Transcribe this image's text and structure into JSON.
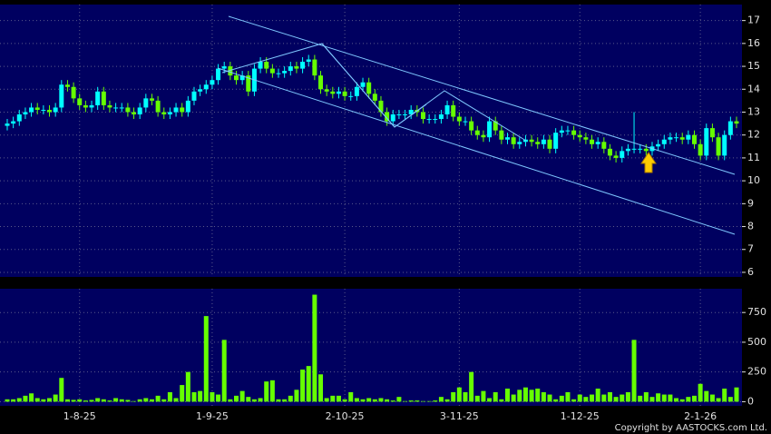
{
  "chart_data": [
    {
      "type": "candlestick",
      "up_color": "#00ffff",
      "down_color": "#66ff00",
      "ylim": [
        5.8,
        17.7
      ],
      "yticks": [
        6,
        7,
        8,
        9,
        10,
        11,
        12,
        13,
        14,
        15,
        16,
        17
      ],
      "grid": true,
      "open": [
        12.4,
        12.5,
        12.6,
        12.9,
        13.0,
        13.2,
        13.1,
        13.1,
        13.0,
        13.2,
        14.2,
        14.1,
        13.6,
        13.3,
        13.2,
        13.3,
        13.9,
        13.3,
        13.2,
        13.2,
        13.2,
        13.0,
        12.9,
        13.2,
        13.6,
        13.5,
        13.0,
        12.9,
        13.0,
        13.2,
        13.0,
        13.5,
        13.9,
        14.0,
        14.2,
        14.4,
        14.9,
        15.0,
        14.6,
        14.4,
        14.6,
        13.9,
        14.9,
        15.2,
        14.9,
        14.7,
        14.7,
        14.8,
        15.0,
        14.9,
        15.2,
        15.3,
        14.6,
        14.0,
        13.9,
        13.8,
        13.9,
        13.7,
        13.7,
        14.1,
        14.3,
        13.8,
        13.5,
        13.0,
        12.6,
        12.9,
        12.9,
        12.9,
        13.1,
        13.0,
        12.7,
        12.7,
        12.7,
        12.9,
        13.3,
        12.8,
        12.6,
        12.6,
        12.2,
        12.0,
        11.9,
        12.6,
        12.2,
        11.8,
        11.9,
        11.6,
        11.7,
        11.8,
        11.7,
        11.6,
        11.8,
        11.4,
        12.1,
        12.2,
        12.2,
        12.0,
        11.9,
        11.8,
        11.6,
        11.7,
        11.4,
        11.1,
        11.0,
        11.3,
        11.4,
        11.4,
        11.4,
        11.3,
        11.5,
        11.6,
        11.8,
        11.9,
        11.9,
        11.8,
        12.0,
        11.6,
        11.1,
        12.3,
        11.9,
        11.1,
        12.0,
        12.6
      ],
      "high": [
        12.7,
        12.8,
        13.1,
        13.2,
        13.4,
        13.4,
        13.3,
        13.3,
        13.4,
        14.4,
        14.4,
        14.3,
        13.8,
        13.5,
        13.5,
        14.1,
        14.1,
        13.5,
        13.4,
        13.4,
        13.4,
        13.2,
        13.4,
        13.8,
        13.8,
        13.7,
        13.2,
        13.2,
        13.4,
        13.4,
        13.7,
        14.1,
        14.2,
        14.4,
        14.6,
        15.1,
        15.2,
        15.2,
        14.8,
        14.8,
        14.8,
        15.1,
        15.4,
        15.4,
        15.1,
        14.9,
        15.0,
        15.2,
        15.2,
        15.4,
        15.5,
        15.5,
        14.8,
        14.2,
        14.1,
        14.1,
        14.1,
        13.9,
        14.3,
        14.5,
        14.5,
        14.0,
        13.7,
        13.2,
        13.1,
        13.1,
        13.1,
        13.3,
        13.3,
        13.2,
        12.9,
        12.9,
        13.1,
        13.5,
        13.5,
        13.0,
        12.8,
        12.8,
        12.4,
        12.2,
        12.8,
        12.8,
        12.4,
        12.1,
        12.1,
        11.9,
        12.0,
        12.0,
        11.9,
        12.0,
        12.0,
        12.3,
        12.4,
        12.4,
        12.4,
        12.2,
        12.1,
        12.0,
        11.9,
        11.9,
        11.6,
        11.3,
        11.5,
        11.6,
        13.0,
        11.6,
        11.6,
        11.7,
        11.8,
        12.0,
        12.1,
        12.1,
        12.1,
        12.2,
        12.2,
        11.8,
        12.5,
        12.5,
        12.1,
        12.2,
        12.8,
        12.8
      ],
      "low": [
        12.2,
        12.3,
        12.4,
        12.7,
        12.8,
        12.9,
        12.9,
        12.8,
        12.8,
        13.0,
        13.9,
        13.4,
        13.1,
        13.0,
        13.0,
        13.1,
        13.1,
        13.0,
        13.0,
        13.0,
        12.8,
        12.7,
        12.7,
        13.0,
        13.3,
        12.8,
        12.7,
        12.7,
        12.8,
        12.8,
        12.8,
        13.3,
        13.7,
        13.8,
        14.0,
        14.2,
        14.7,
        14.4,
        14.2,
        14.2,
        13.7,
        13.7,
        14.7,
        14.7,
        14.5,
        14.5,
        14.5,
        14.6,
        14.7,
        14.7,
        15.0,
        14.4,
        13.8,
        13.7,
        13.6,
        13.6,
        13.5,
        13.5,
        13.5,
        13.9,
        13.6,
        13.3,
        12.8,
        12.4,
        12.4,
        12.7,
        12.7,
        12.7,
        12.8,
        12.5,
        12.5,
        12.5,
        12.5,
        12.7,
        12.6,
        12.4,
        12.4,
        12.0,
        11.8,
        11.7,
        11.7,
        12.0,
        11.6,
        11.6,
        11.4,
        11.4,
        11.5,
        11.5,
        11.4,
        11.4,
        11.2,
        11.2,
        11.9,
        12.0,
        11.8,
        11.7,
        11.6,
        11.4,
        11.4,
        11.2,
        10.9,
        10.8,
        10.8,
        11.1,
        11.2,
        11.2,
        11.1,
        11.1,
        11.3,
        11.4,
        11.6,
        11.7,
        11.6,
        11.6,
        11.4,
        10.9,
        10.9,
        11.7,
        10.9,
        10.9,
        11.8,
        12.3
      ],
      "close": [
        12.5,
        12.6,
        12.9,
        13.0,
        13.2,
        13.1,
        13.1,
        13.0,
        13.2,
        14.2,
        14.1,
        13.6,
        13.3,
        13.2,
        13.3,
        13.9,
        13.3,
        13.2,
        13.2,
        13.2,
        13.0,
        12.9,
        13.2,
        13.6,
        13.5,
        13.0,
        12.9,
        13.0,
        13.2,
        13.0,
        13.5,
        13.9,
        14.0,
        14.2,
        14.4,
        14.9,
        15.0,
        14.6,
        14.4,
        14.6,
        13.9,
        14.9,
        15.2,
        14.9,
        14.7,
        14.7,
        14.8,
        15.0,
        14.9,
        15.2,
        15.3,
        14.6,
        14.0,
        13.9,
        13.8,
        13.9,
        13.7,
        13.7,
        14.1,
        14.3,
        13.8,
        13.5,
        13.0,
        12.6,
        12.9,
        12.9,
        12.9,
        13.1,
        13.0,
        12.7,
        12.7,
        12.7,
        12.9,
        13.3,
        12.8,
        12.6,
        12.6,
        12.2,
        12.0,
        11.9,
        12.6,
        12.2,
        11.8,
        11.9,
        11.6,
        11.7,
        11.8,
        11.7,
        11.6,
        11.8,
        11.4,
        12.1,
        12.2,
        12.2,
        12.0,
        11.9,
        11.8,
        11.6,
        11.7,
        11.4,
        11.1,
        11.0,
        11.3,
        11.4,
        11.4,
        11.4,
        11.3,
        11.5,
        11.6,
        11.8,
        11.9,
        11.9,
        11.8,
        12.0,
        11.6,
        11.1,
        12.3,
        11.9,
        11.1,
        12.0,
        12.6,
        12.5
      ]
    },
    {
      "type": "bar",
      "color": "#66ff00",
      "ylim": [
        -35,
        950
      ],
      "yticks": [
        0,
        250,
        500,
        750
      ],
      "grid": true,
      "categories": [
        null,
        null,
        null,
        null,
        null,
        null,
        null,
        null,
        null,
        null,
        null,
        null,
        "1-8-25",
        null,
        null,
        null,
        null,
        null,
        null,
        null,
        null,
        null,
        null,
        null,
        null,
        null,
        null,
        null,
        null,
        null,
        null,
        null,
        null,
        null,
        "1-9-25",
        null,
        null,
        null,
        null,
        null,
        null,
        null,
        null,
        null,
        null,
        null,
        null,
        null,
        null,
        null,
        null,
        null,
        null,
        null,
        null,
        null,
        "2-10-25",
        null,
        null,
        null,
        null,
        null,
        null,
        null,
        null,
        null,
        null,
        null,
        null,
        null,
        null,
        null,
        null,
        null,
        null,
        "3-11-25",
        null,
        null,
        null,
        null,
        null,
        null,
        null,
        null,
        null,
        null,
        null,
        null,
        null,
        null,
        null,
        null,
        null,
        null,
        null,
        "1-12-25",
        null,
        null,
        null,
        null,
        null,
        null,
        null,
        null,
        null,
        null,
        null,
        null,
        null,
        null,
        null,
        null,
        null,
        null,
        null,
        "2-1-26",
        null,
        null,
        null,
        null,
        null,
        null
      ],
      "values": [
        20,
        20,
        30,
        50,
        70,
        30,
        20,
        30,
        60,
        200,
        20,
        15,
        20,
        10,
        15,
        30,
        20,
        10,
        30,
        20,
        15,
        5,
        20,
        30,
        20,
        50,
        20,
        80,
        30,
        140,
        250,
        80,
        90,
        720,
        80,
        60,
        520,
        20,
        50,
        90,
        40,
        20,
        30,
        170,
        180,
        20,
        20,
        50,
        100,
        270,
        300,
        900,
        230,
        30,
        50,
        50,
        20,
        80,
        30,
        20,
        30,
        20,
        30,
        20,
        10,
        40,
        5,
        10,
        10,
        5,
        5,
        10,
        40,
        20,
        80,
        120,
        80,
        250,
        50,
        90,
        30,
        80,
        20,
        110,
        60,
        100,
        120,
        100,
        110,
        80,
        60,
        20,
        50,
        80,
        20,
        60,
        40,
        60,
        110,
        60,
        80,
        40,
        60,
        80,
        520,
        50,
        80,
        40,
        70,
        60,
        60,
        30,
        20,
        40,
        50,
        150,
        90,
        60,
        30,
        110,
        40,
        120
      ]
    }
  ],
  "footer": "Copyright by AASTOCKS.com Ltd."
}
